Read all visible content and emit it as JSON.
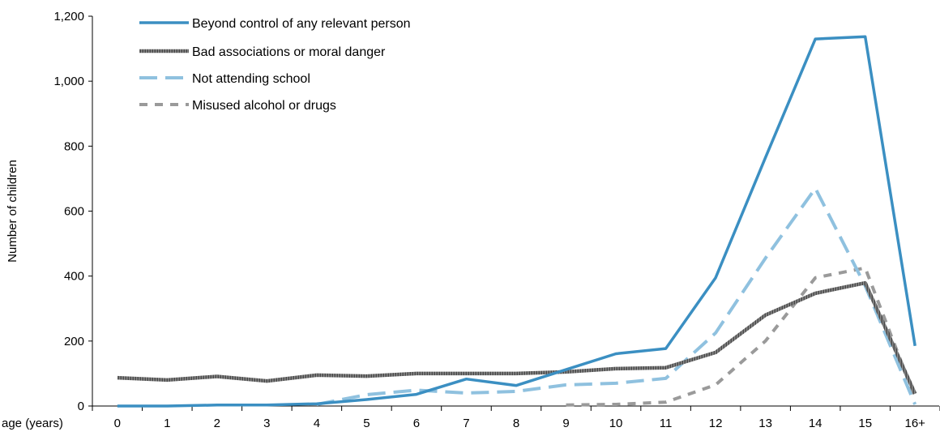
{
  "chart_data": {
    "type": "line",
    "categories": [
      "0",
      "1",
      "2",
      "3",
      "4",
      "5",
      "6",
      "7",
      "8",
      "9",
      "10",
      "11",
      "12",
      "13",
      "14",
      "15",
      "16+"
    ],
    "xlabel": "age (years)",
    "ylabel": "Number of children",
    "ylim": [
      0,
      1200
    ],
    "yticks": [
      0,
      200,
      400,
      600,
      800,
      1000,
      1200
    ],
    "ytick_labels": [
      "0",
      "200",
      "400",
      "600",
      "800",
      "1,000",
      "1,200"
    ],
    "grid": false,
    "legend_position": "top-left",
    "series": [
      {
        "name": "Beyond control of any relevant person",
        "color": "#3b8fc2",
        "style": "solid",
        "values": [
          0,
          0,
          3,
          3,
          7,
          20,
          36,
          83,
          63,
          112,
          161,
          177,
          395,
          765,
          1130,
          1137,
          185
        ]
      },
      {
        "name": "Bad associations or moral danger",
        "color": "#555555",
        "style": "hatched",
        "values": [
          87,
          80,
          91,
          77,
          95,
          92,
          100,
          100,
          100,
          105,
          115,
          118,
          165,
          280,
          347,
          379,
          38
        ]
      },
      {
        "name": "Not attending school",
        "color": "#8fc1df",
        "style": "dashed",
        "values": [
          null,
          null,
          null,
          null,
          5,
          35,
          49,
          40,
          45,
          65,
          70,
          85,
          225,
          455,
          670,
          370,
          5
        ]
      },
      {
        "name": "Misused alcohol or drugs",
        "color": "#9a9a9a",
        "style": "dashed-short",
        "values": [
          null,
          null,
          null,
          null,
          null,
          null,
          null,
          null,
          null,
          3,
          5,
          12,
          65,
          200,
          395,
          425,
          25
        ]
      }
    ]
  }
}
